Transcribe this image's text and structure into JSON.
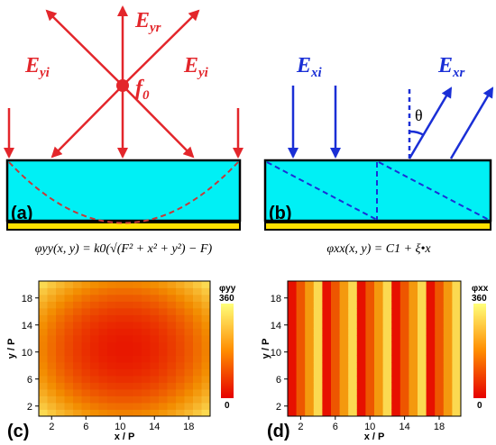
{
  "panel_a": {
    "tag": "(a)",
    "label_left_base": "E",
    "label_left_sub": "yi",
    "label_right_base": "E",
    "label_right_sub": "yi",
    "label_top_base": "E",
    "label_top_sub": "yr",
    "focus_base": "f",
    "focus_sub": "0",
    "formula": "φyy(x, y) = k0(√(F² + x² + y²) − F)"
  },
  "panel_b": {
    "tag": "(b)",
    "label_in_base": "E",
    "label_in_sub": "xi",
    "label_out_base": "E",
    "label_out_sub": "xr",
    "theta": "θ",
    "formula": "φxx(x, y) = C1 + ξ•x"
  },
  "panel_c": {
    "tag": "(c)",
    "xlabel": "x / P",
    "ylabel": "y / P",
    "xticks": [
      "2",
      "6",
      "10",
      "14",
      "18"
    ],
    "yticks": [
      "2",
      "6",
      "10",
      "14",
      "18"
    ],
    "cb_title": "φyy",
    "cb_max": "360",
    "cb_min": "0"
  },
  "panel_d": {
    "tag": "(d)",
    "xlabel": "x / P",
    "ylabel": "y / P",
    "xticks": [
      "2",
      "6",
      "10",
      "14",
      "18"
    ],
    "yticks": [
      "2",
      "6",
      "10",
      "14",
      "18"
    ],
    "cb_title": "φxx",
    "cb_max": "360",
    "cb_min": "0"
  },
  "colors": {
    "red_arrow": "#e3262b",
    "blue_arrow": "#1a2fd6",
    "substrate": "#00f0f5",
    "ground": "#ffe000",
    "colormap_low": "#e60000",
    "colormap_high": "#ffff7a"
  },
  "chart_data": [
    {
      "type": "heatmap",
      "grid_size": 20,
      "pattern": "hyperbolic focusing phase, minimum at center",
      "x_range": [
        1,
        20
      ],
      "y_range": [
        1,
        20
      ],
      "value_range": [
        0,
        360
      ],
      "center_value": 30,
      "corner_value": 300
    },
    {
      "type": "heatmap",
      "grid_size": 20,
      "pattern": "linear gradient along x, period 5",
      "column_values": [
        20,
        110,
        200,
        300,
        20,
        110,
        200,
        300,
        20,
        110,
        200,
        300,
        20,
        110,
        200,
        300,
        20,
        110,
        200,
        300
      ],
      "value_range": [
        0,
        360
      ]
    }
  ]
}
